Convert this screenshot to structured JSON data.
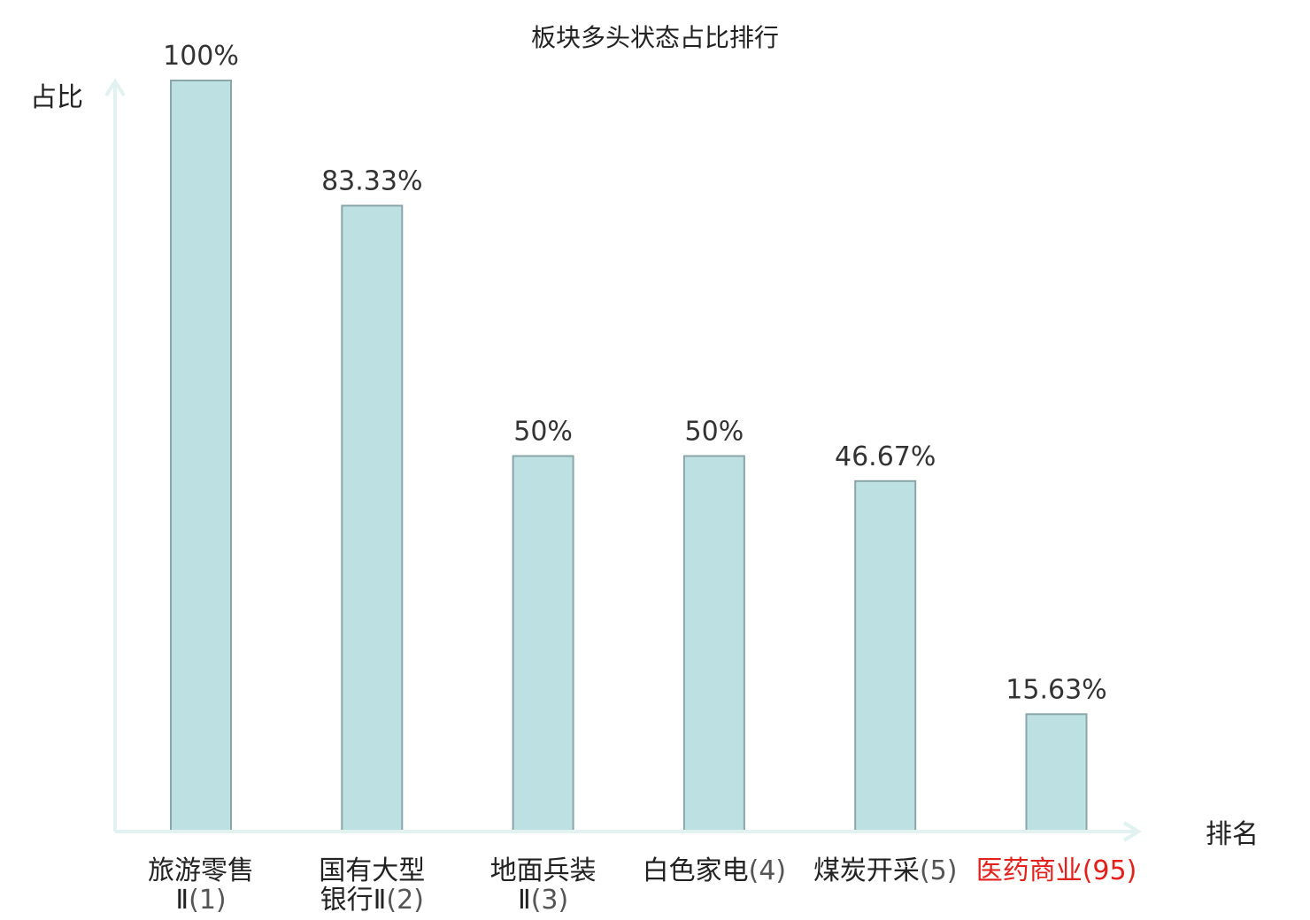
{
  "chart_data": {
    "type": "bar",
    "title": "板块多头状态占比排行",
    "ylabel": "占比",
    "xlabel": "排名",
    "ylim": [
      0,
      100
    ],
    "grid": false,
    "bar_color": "#bde0e2",
    "bar_edge_color": "#8aa6a9",
    "axis_color": "#e2f2f0",
    "highlight_color": "#e3201b",
    "categories": [
      {
        "name_lines": [
          "旅游零售",
          "Ⅱ"
        ],
        "rank": "(1)",
        "highlight": false
      },
      {
        "name_lines": [
          "国有大型",
          "银行Ⅱ"
        ],
        "rank": "(2)",
        "highlight": false
      },
      {
        "name_lines": [
          "地面兵装",
          "Ⅱ"
        ],
        "rank": "(3)",
        "highlight": false
      },
      {
        "name_lines": [
          "白色家电"
        ],
        "rank": "(4)",
        "highlight": false
      },
      {
        "name_lines": [
          "煤炭开采"
        ],
        "rank": "(5)",
        "highlight": false
      },
      {
        "name_lines": [
          "医药商业"
        ],
        "rank": "(95)",
        "highlight": true
      }
    ],
    "values": [
      100,
      83.33,
      50,
      50,
      46.67,
      15.63
    ],
    "value_labels": [
      "100%",
      "83.33%",
      "50%",
      "50%",
      "46.67%",
      "15.63%"
    ]
  }
}
